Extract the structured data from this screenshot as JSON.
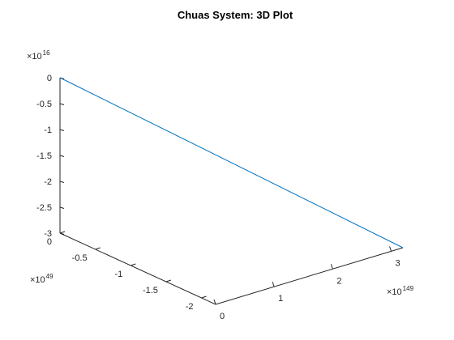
{
  "chart_data": {
    "type": "line",
    "title": "Chuas System: 3D Plot",
    "colors": {
      "series": "#0072BD",
      "axis": "#262626"
    },
    "axes": {
      "x": {
        "ticks": [
          0,
          -0.5,
          -1,
          -1.5,
          -2
        ],
        "tick_labels": [
          "0",
          "-0.5",
          "-1",
          "-1.5",
          "-2"
        ],
        "multiplier": {
          "base": "×10",
          "exponent": "49"
        },
        "range": [
          -2.2,
          0
        ]
      },
      "y": {
        "ticks": [
          0,
          1,
          2,
          3
        ],
        "tick_labels": [
          "0",
          "1",
          "2",
          "3"
        ],
        "multiplier": {
          "base": "×10",
          "exponent": "149"
        },
        "range": [
          0,
          3.2
        ]
      },
      "z": {
        "ticks": [
          0,
          -0.5,
          -1,
          -1.5,
          -2,
          -2.5,
          -3
        ],
        "tick_labels": [
          "0",
          "-0.5",
          "-1",
          "-1.5",
          "-2",
          "-2.5",
          "-3"
        ],
        "multiplier": {
          "base": "×10",
          "exponent": "16"
        },
        "range": [
          -3,
          0
        ]
      }
    },
    "series": [
      {
        "points": [
          {
            "x": 0,
            "y": 0,
            "z": 0
          },
          {
            "x": -2.2,
            "y": 3.2,
            "z": -3
          }
        ]
      }
    ]
  }
}
